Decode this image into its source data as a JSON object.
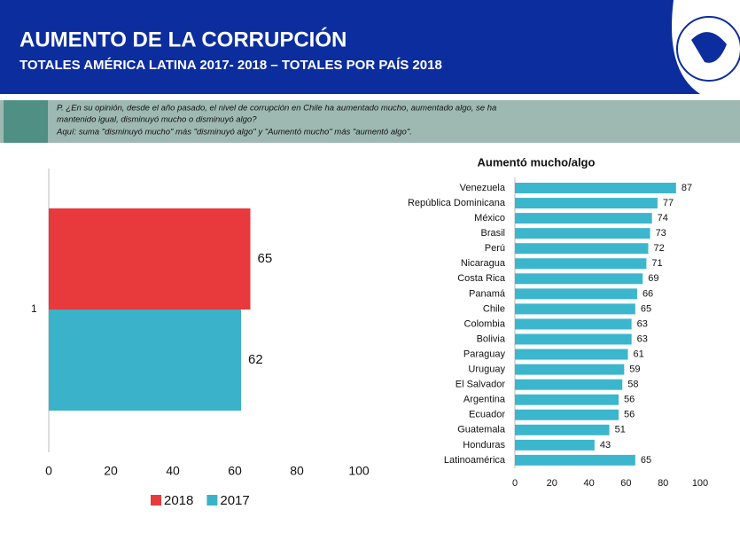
{
  "header": {
    "title": "AUMENTO DE LA CORRUPCIÓN",
    "subtitle": "TOTALES AMÉRICA LATINA 2017- 2018 – TOTALES POR PAÍS 2018"
  },
  "question": [
    "P. ¿En su opinión, desde el año pasado, el nivel de corrupción en Chile ha aumentado mucho, aumentado algo, se ha",
    "mantenido igual, disminuyó mucho o disminuyó algo?",
    "Aquí: suma \"disminuyó mucho\" más \"disminuyó algo\" y \"Aumentó mucho\" más \"aumentó algo\"."
  ],
  "chart_data": [
    {
      "type": "bar",
      "horizontal": true,
      "categories": [
        "1"
      ],
      "series": [
        {
          "name": "2018",
          "color": "#e8393c",
          "values": [
            65
          ]
        },
        {
          "name": "2017",
          "color": "#3ab2c9",
          "values": [
            62
          ]
        }
      ],
      "xlim": [
        0,
        100
      ],
      "xticks": [
        0,
        20,
        40,
        60,
        80,
        100
      ],
      "legend": "bottom"
    },
    {
      "type": "bar",
      "horizontal": true,
      "title": "Aumentó mucho/algo",
      "color": "#3cb6cd",
      "categories": [
        "Venezuela",
        "República Dominicana",
        "México",
        "Brasil",
        "Perú",
        "Nicaragua",
        "Costa Rica",
        "Panamá",
        "Chile",
        "Colombia",
        "Bolivia",
        "Paraguay",
        "Uruguay",
        "El Salvador",
        "Argentina",
        "Ecuador",
        "Guatemala",
        "Honduras",
        "Latinoamérica"
      ],
      "values": [
        87,
        77,
        74,
        73,
        72,
        71,
        69,
        66,
        65,
        63,
        63,
        61,
        59,
        58,
        56,
        56,
        51,
        43,
        65
      ],
      "xlim": [
        0,
        100
      ],
      "xticks": [
        0,
        20,
        40,
        60,
        80,
        100
      ]
    }
  ]
}
